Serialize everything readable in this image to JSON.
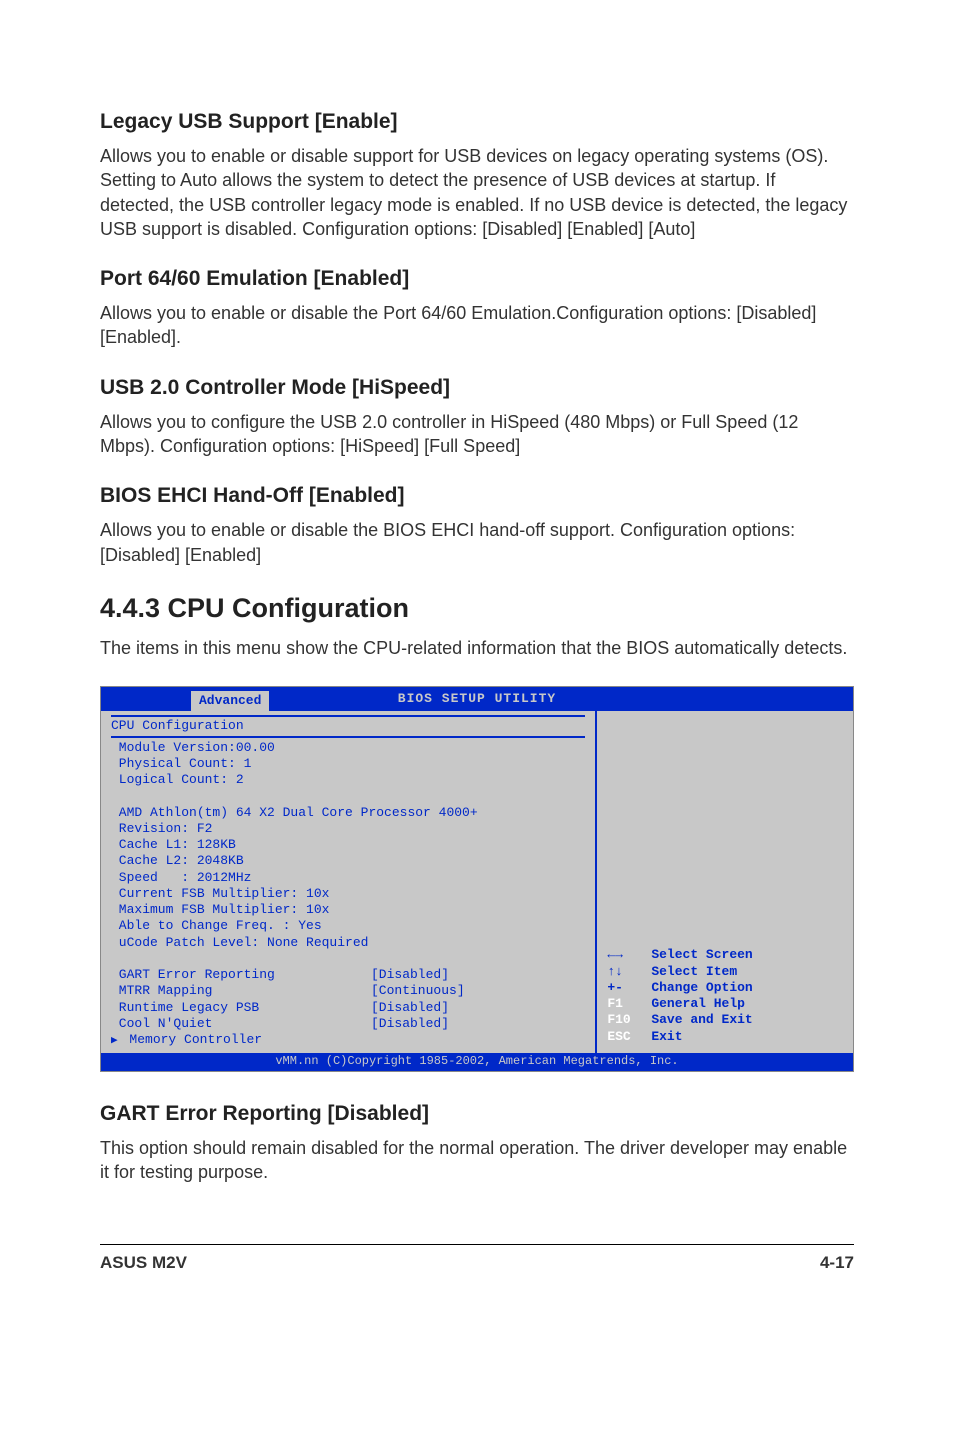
{
  "sections": {
    "s1": {
      "heading": "Legacy USB Support [Enable]",
      "body": "Allows you to enable or disable support for USB devices on legacy operating systems (OS). Setting to Auto allows the system to detect the presence of USB devices at startup. If detected, the USB controller legacy mode is enabled. If no USB device is detected, the legacy USB support is disabled. Configuration options: [Disabled] [Enabled] [Auto]"
    },
    "s2": {
      "heading": "Port 64/60 Emulation [Enabled]",
      "body": "Allows you to enable or disable the Port 64/60 Emulation.Configuration options: [Disabled] [Enabled]."
    },
    "s3": {
      "heading": "USB 2.0 Controller Mode [HiSpeed]",
      "body": "Allows you to configure the USB 2.0 controller in HiSpeed (480 Mbps) or Full Speed (12 Mbps). Configuration options: [HiSpeed] [Full Speed]"
    },
    "s4": {
      "heading": "BIOS EHCI Hand-Off [Enabled]",
      "body": "Allows you to enable or disable the BIOS EHCI hand-off support. Configuration options: [Disabled] [Enabled]"
    },
    "main": {
      "heading": "4.4.3   CPU Configuration",
      "body": "The items in this menu show the CPU-related information that the BIOS automatically detects."
    },
    "s5": {
      "heading": "GART Error Reporting [Disabled]",
      "body": "This option should remain disabled for the normal operation. The driver developer may enable it for testing purpose."
    }
  },
  "bios": {
    "title": "BIOS SETUP UTILITY",
    "tab": "Advanced",
    "section_title": " CPU Configuration",
    "info_lines": {
      "l1": " Module Version:00.00",
      "l2": " Physical Count: 1",
      "l3": " Logical Count: 2",
      "blank1": " ",
      "l4": " AMD Athlon(tm) 64 X2 Dual Core Processor 4000+",
      "l5": " Revision: F2",
      "l6": " Cache L1: 128KB",
      "l7": " Cache L2: 2048KB",
      "l8": " Speed   : 2012MHz",
      "l9": " Current FSB Multiplier: 10x",
      "l10": " Maximum FSB Multiplier: 10x",
      "l11": " Able to Change Freq. : Yes",
      "l12": " uCode Patch Level: None Required",
      "blank2": " "
    },
    "settings": {
      "r1": {
        "label": " GART Error Reporting",
        "value": "[Disabled]"
      },
      "r2": {
        "label": " MTRR Mapping",
        "value": "[Continuous]"
      },
      "r3": {
        "label": " Runtime Legacy PSB",
        "value": "[Disabled]"
      },
      "r4": {
        "label": " Cool N'Quiet",
        "value": "[Disabled]"
      }
    },
    "submenu": " Memory Controller",
    "help": {
      "h1": {
        "key": "←→",
        "label": "Select Screen"
      },
      "h2": {
        "key": "↑↓",
        "label": "Select Item"
      },
      "h3": {
        "key": "+-",
        "label": "Change Option"
      },
      "h4": {
        "key": "F1",
        "label": "General Help"
      },
      "h5": {
        "key": "F10",
        "label": "Save and Exit"
      },
      "h6": {
        "key": "ESC",
        "label": "Exit"
      }
    },
    "footer": "vMM.nn (C)Copyright 1985-2002, American Megatrends, Inc."
  },
  "footer": {
    "left": "ASUS M2V",
    "right": "4-17"
  }
}
